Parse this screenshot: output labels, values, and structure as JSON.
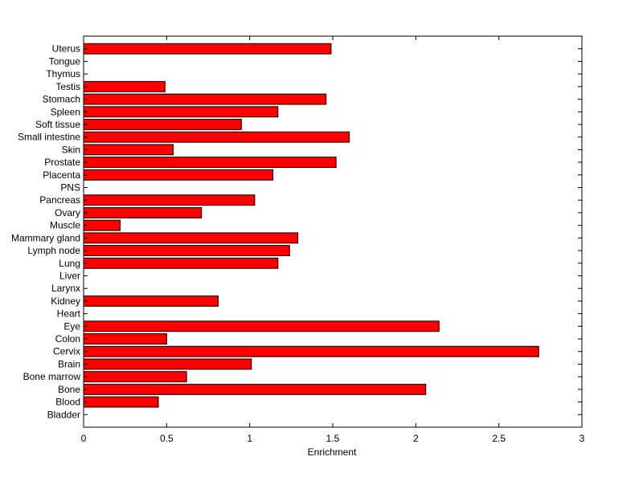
{
  "chart_data": {
    "type": "bar",
    "orientation": "horizontal",
    "categories": [
      "Bladder",
      "Blood",
      "Bone",
      "Bone marrow",
      "Brain",
      "Cervix",
      "Colon",
      "Eye",
      "Heart",
      "Kidney",
      "Larynx",
      "Liver",
      "Lung",
      "Lymph node",
      "Mammary gland",
      "Muscle",
      "Ovary",
      "Pancreas",
      "PNS",
      "Placenta",
      "Prostate",
      "Skin",
      "Small intestine",
      "Soft tissue",
      "Spleen",
      "Stomach",
      "Testis",
      "Thymus",
      "Tongue",
      "Uterus"
    ],
    "values": [
      0,
      0.45,
      2.06,
      0.62,
      1.01,
      2.74,
      0.5,
      2.14,
      0,
      0.81,
      0,
      0,
      1.17,
      1.24,
      1.29,
      0.22,
      0.71,
      1.03,
      0,
      1.14,
      1.52,
      0.54,
      1.6,
      0.95,
      1.17,
      1.46,
      0.49,
      0,
      0,
      1.49
    ],
    "xlabel": "Enrichment",
    "ylabel": "",
    "title": "",
    "xlim": [
      0,
      3
    ],
    "xticks": [
      "0",
      "0.5",
      "1",
      "1.5",
      "2",
      "2.5",
      "3"
    ],
    "grid": false,
    "colors": {
      "bar_fill": "#ff0000",
      "bar_edge": "#000000",
      "axes": "#000000"
    }
  }
}
